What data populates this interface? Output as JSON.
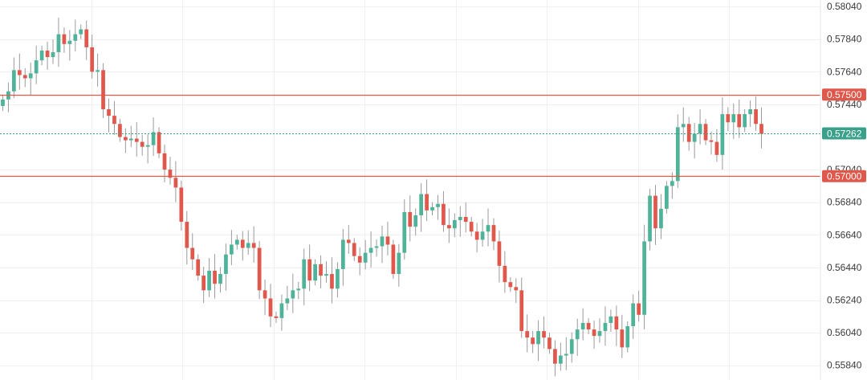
{
  "chart_data": {
    "type": "candlestick",
    "title": "",
    "xlabel": "",
    "ylabel": "",
    "ylim": [
      0.5575,
      0.5808
    ],
    "y_ticks": [
      {
        "value": 0.5804,
        "label": "0.58040"
      },
      {
        "value": 0.5784,
        "label": "0.57840"
      },
      {
        "value": 0.5764,
        "label": "0.57640"
      },
      {
        "value": 0.5744,
        "label": "0.57440"
      },
      {
        "value": 0.5704,
        "label": "0.57040"
      },
      {
        "value": 0.5684,
        "label": "0.56840"
      },
      {
        "value": 0.5664,
        "label": "0.56640"
      },
      {
        "value": 0.5644,
        "label": "0.56440"
      },
      {
        "value": 0.5624,
        "label": "0.56240"
      },
      {
        "value": 0.5604,
        "label": "0.56040"
      },
      {
        "value": 0.5584,
        "label": "0.55840"
      }
    ],
    "horizontal_lines": [
      {
        "value": 0.575,
        "label": "0.57500",
        "color": "#e0584c",
        "style": "solid"
      },
      {
        "value": 0.57,
        "label": "0.57000",
        "color": "#e0584c",
        "style": "solid"
      }
    ],
    "last_price": {
      "value": 0.57262,
      "label": "0.57262",
      "color": "#3aa08a",
      "style": "dotted"
    },
    "grid": true,
    "colors": {
      "up": "#4fb39a",
      "down": "#e0584c",
      "wick": "#9a9a9a",
      "grid": "#f0f0f0"
    },
    "closes": [
      0.5747,
      0.5752,
      0.5765,
      0.5762,
      0.576,
      0.5763,
      0.5771,
      0.5777,
      0.5773,
      0.5776,
      0.5787,
      0.5781,
      0.5783,
      0.5787,
      0.579,
      0.5779,
      0.5764,
      0.5765,
      0.5741,
      0.5737,
      0.5732,
      0.5724,
      0.5722,
      0.5723,
      0.5721,
      0.5718,
      0.5719,
      0.5727,
      0.5714,
      0.5704,
      0.5699,
      0.5693,
      0.5672,
      0.5656,
      0.5649,
      0.5639,
      0.563,
      0.5642,
      0.5634,
      0.564,
      0.5652,
      0.5658,
      0.5661,
      0.5656,
      0.5659,
      0.5656,
      0.563,
      0.5625,
      0.5614,
      0.5613,
      0.5622,
      0.5625,
      0.563,
      0.5631,
      0.5649,
      0.5636,
      0.5646,
      0.5639,
      0.564,
      0.5631,
      0.5643,
      0.5661,
      0.5659,
      0.5651,
      0.5647,
      0.5653,
      0.5656,
      0.5657,
      0.5663,
      0.5658,
      0.564,
      0.5653,
      0.5678,
      0.5669,
      0.5676,
      0.5689,
      0.5679,
      0.5681,
      0.5683,
      0.567,
      0.5668,
      0.5673,
      0.5675,
      0.5672,
      0.5666,
      0.5661,
      0.5666,
      0.567,
      0.566,
      0.5645,
      0.5635,
      0.5632,
      0.563,
      0.5605,
      0.5601,
      0.5597,
      0.5605,
      0.5601,
      0.5594,
      0.5585,
      0.559,
      0.5591,
      0.56,
      0.5606,
      0.561,
      0.5606,
      0.5602,
      0.5605,
      0.561,
      0.5614,
      0.5606,
      0.5595,
      0.5608,
      0.5622,
      0.5615,
      0.566,
      0.5688,
      0.5668,
      0.568,
      0.5694,
      0.5697,
      0.573,
      0.5732,
      0.5721,
      0.5726,
      0.5732,
      0.5722,
      0.5721,
      0.5713,
      0.5738,
      0.5733,
      0.5738,
      0.573,
      0.5738,
      0.5741,
      0.5732,
      0.5726
    ]
  }
}
